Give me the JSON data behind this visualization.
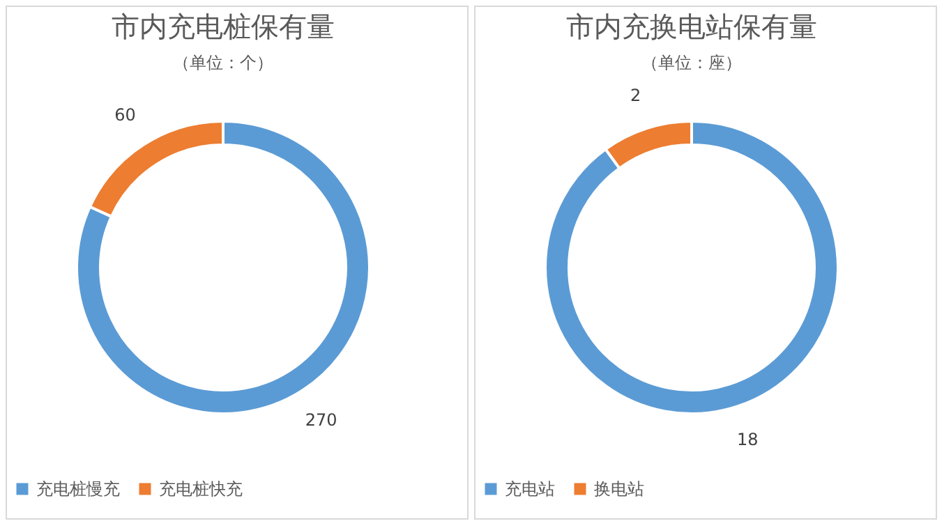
{
  "chart_data": [
    {
      "type": "donut",
      "title": "市内充电桩保有量",
      "subtitle": "（单位：个）",
      "categories": [
        "充电桩慢充",
        "充电桩快充"
      ],
      "values": [
        270,
        60
      ],
      "colors": [
        "#5b9bd5",
        "#ed7d31"
      ],
      "data_labels": true,
      "legend": "bottom"
    },
    {
      "type": "donut",
      "title": "市内充换电站保有量",
      "subtitle": "（单位：座）",
      "categories": [
        "充电站",
        "换电站"
      ],
      "values": [
        18,
        2
      ],
      "colors": [
        "#5b9bd5",
        "#ed7d31"
      ],
      "data_labels": true,
      "legend": "bottom"
    }
  ]
}
